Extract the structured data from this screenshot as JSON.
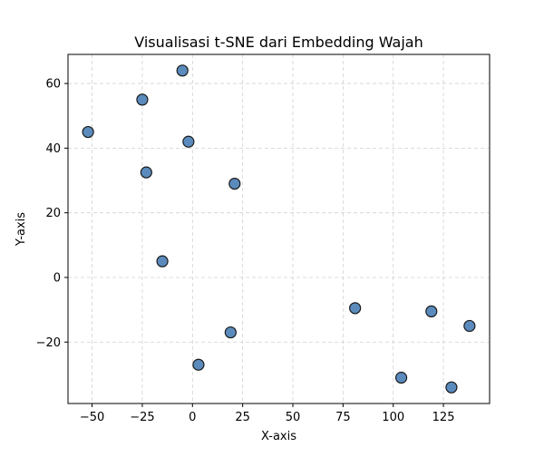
{
  "chart_data": {
    "type": "scatter",
    "title": "Visualisasi t-SNE dari Embedding Wajah",
    "xlabel": "X-axis",
    "ylabel": "Y-axis",
    "xlim": [
      -62,
      148
    ],
    "ylim": [
      -39,
      69
    ],
    "xticks": [
      -50,
      -25,
      0,
      25,
      50,
      75,
      100,
      125
    ],
    "xtick_labels": [
      "−50",
      "−25",
      "0",
      "25",
      "50",
      "75",
      "100",
      "125"
    ],
    "yticks": [
      -20,
      0,
      20,
      40,
      60
    ],
    "ytick_labels": [
      "−20",
      "0",
      "20",
      "40",
      "60"
    ],
    "grid": true,
    "legend": "none",
    "marker_color": "#5b8bbd",
    "marker_edge_color": "#1a1a1a",
    "points": [
      {
        "x": -52,
        "y": 45
      },
      {
        "x": -25,
        "y": 55
      },
      {
        "x": -5,
        "y": 64
      },
      {
        "x": -2,
        "y": 42
      },
      {
        "x": -23,
        "y": 32.5
      },
      {
        "x": 21,
        "y": 29
      },
      {
        "x": -15,
        "y": 5
      },
      {
        "x": 19,
        "y": -17
      },
      {
        "x": 3,
        "y": -27
      },
      {
        "x": 81,
        "y": -9.5
      },
      {
        "x": 119,
        "y": -10.5
      },
      {
        "x": 138,
        "y": -15
      },
      {
        "x": 104,
        "y": -31
      },
      {
        "x": 129,
        "y": -34
      }
    ]
  }
}
